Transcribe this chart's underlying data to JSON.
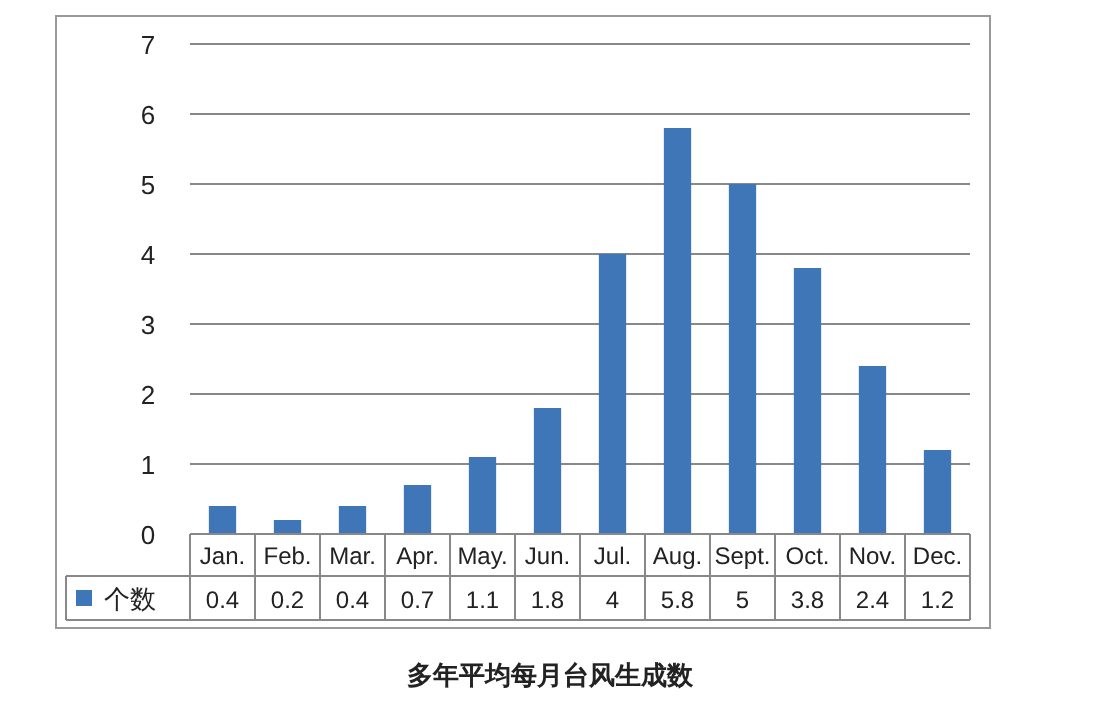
{
  "chart_data": {
    "type": "bar",
    "title": "多年平均每月台风生成数",
    "categories": [
      "Jan.",
      "Feb.",
      "Mar.",
      "Apr.",
      "May.",
      "Jun.",
      "Jul.",
      "Aug.",
      "Sept.",
      "Oct.",
      "Nov.",
      "Dec."
    ],
    "series": [
      {
        "name": "个数",
        "color": "#3f76b8",
        "values": [
          0.4,
          0.2,
          0.4,
          0.7,
          1.1,
          1.8,
          4,
          5.8,
          5,
          3.8,
          2.4,
          1.2
        ]
      }
    ],
    "ylim": [
      0,
      7
    ],
    "yticks": [
      0,
      1,
      2,
      3,
      4,
      5,
      6,
      7
    ],
    "grid": "y",
    "data_labels": true
  }
}
